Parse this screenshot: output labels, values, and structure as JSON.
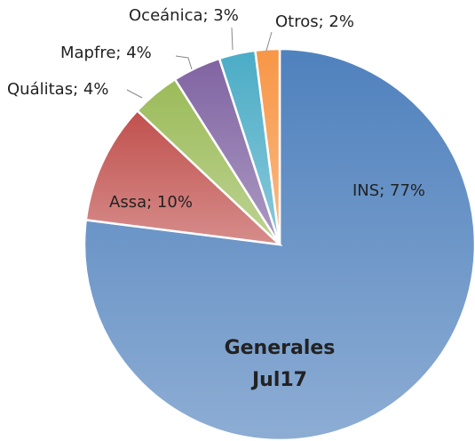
{
  "chart_data": {
    "type": "pie",
    "title": [
      "Generales",
      "Jul17"
    ],
    "categories": [
      "INS",
      "Assa",
      "Quálitas",
      "Mapfre",
      "Oceánica",
      "Otros"
    ],
    "values": [
      77,
      10,
      4,
      4,
      3,
      2
    ],
    "value_labels": [
      "INS; 77%",
      "Assa; 10%",
      "Quálitas; 4%",
      "Mapfre; 4%",
      "Oceánica; 3%",
      "Otros; 2%"
    ],
    "colors": [
      "#4f81bd",
      "#c0504d",
      "#9bbb59",
      "#8064a2",
      "#4bacc6",
      "#f79646"
    ]
  }
}
